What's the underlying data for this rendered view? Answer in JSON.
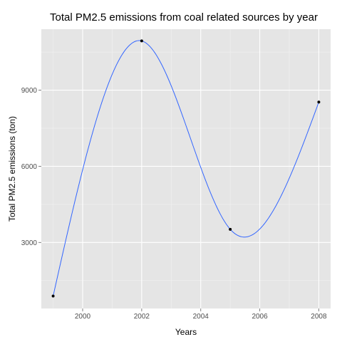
{
  "chart_data": {
    "type": "line",
    "title": "Total PM2.5 emissions from coal related sources by year",
    "xlabel": "Years",
    "ylabel": "Total PM2.5 emissions (ton)",
    "x": [
      1999,
      2002,
      2005,
      2008
    ],
    "y": [
      890,
      10940,
      3520,
      8530
    ],
    "xlim": [
      1998.6,
      2008.4
    ],
    "ylim": [
      400,
      11400
    ],
    "xticks": [
      2000,
      2002,
      2004,
      2006,
      2008
    ],
    "yticks": [
      3000,
      6000,
      9000
    ],
    "smooth": true,
    "grid": true,
    "colors": {
      "panel": "#e5e5e5",
      "grid_major": "#ffffff",
      "grid_minor": "#f2f2f2",
      "line": "#3366ff",
      "points": "#000000"
    }
  }
}
